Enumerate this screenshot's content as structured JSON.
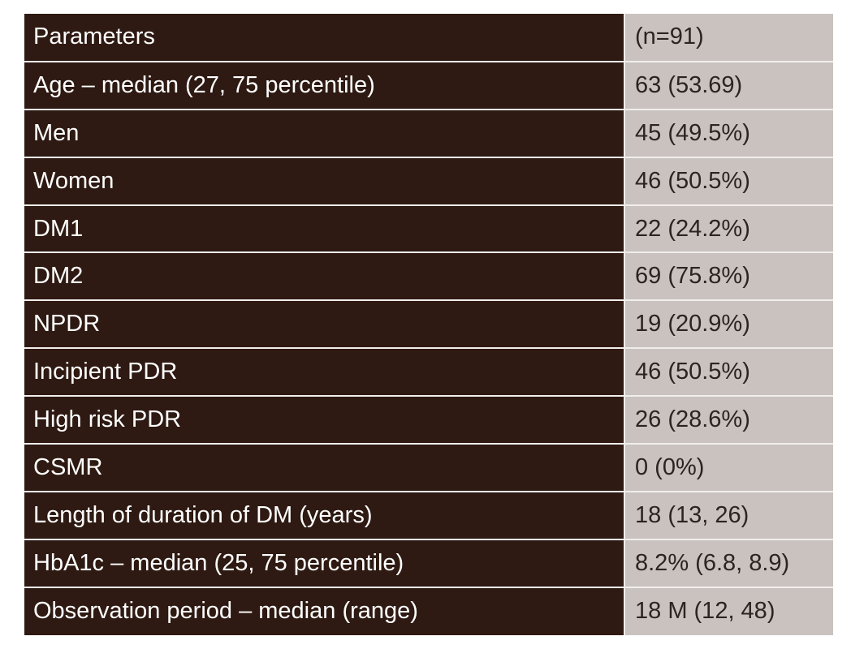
{
  "table": {
    "header": {
      "label": "Parameters",
      "value": "(n=91)"
    },
    "rows": [
      {
        "label": "Age – median (27, 75 percentile)",
        "value": "63 (53.69)"
      },
      {
        "label": "Men",
        "value": "45 (49.5%)"
      },
      {
        "label": "Women",
        "value": "46 (50.5%)"
      },
      {
        "label": "DM1",
        "value": "22 (24.2%)"
      },
      {
        "label": "DM2",
        "value": "69 (75.8%)"
      },
      {
        "label": "NPDR",
        "value": "19 (20.9%)"
      },
      {
        "label": "Incipient PDR",
        "value": "46 (50.5%)"
      },
      {
        "label": "High risk PDR",
        "value": "26 (28.6%)"
      },
      {
        "label": "CSMR",
        "value": "0 (0%)"
      },
      {
        "label": "Length of duration of DM (years)",
        "value": "18 (13, 26)"
      },
      {
        "label": "HbA1c – median (25, 75 percentile)",
        "value": "8.2% (6.8, 8.9)"
      },
      {
        "label": "Observation period – median (range)",
        "value": "18 M (12, 48)"
      }
    ]
  },
  "colors": {
    "label_column_bg": "#2e1a12",
    "label_text": "#ffffff",
    "value_column_bg": "#c9c2bf",
    "value_text": "#2b2420"
  }
}
